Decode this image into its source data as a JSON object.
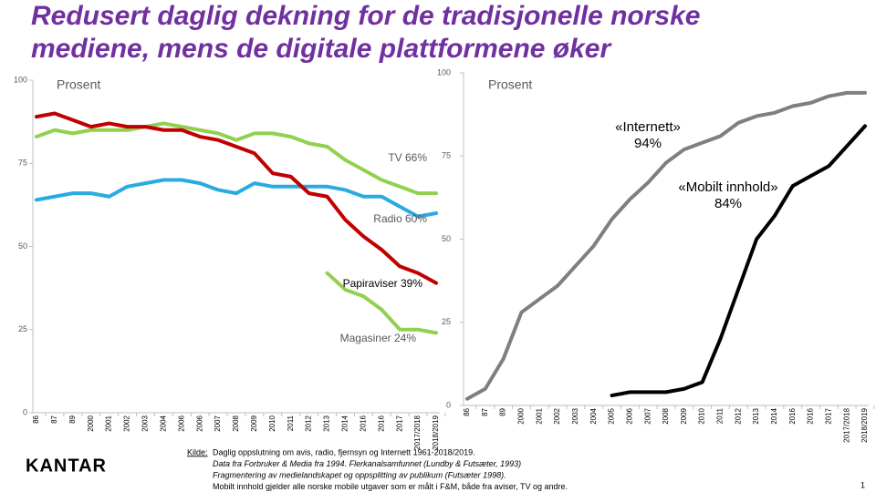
{
  "title": "Redusert daglig dekning for de tradisjonelle norske mediene, mens de digitale plattformene øker",
  "chart_data": [
    {
      "type": "line",
      "ylabel": "Prosent",
      "categories": [
        "86",
        "87",
        "89",
        "2000",
        "2001",
        "2002",
        "2003",
        "2004",
        "2006",
        "2006",
        "2007",
        "2008",
        "2009",
        "2010",
        "2011",
        "2012",
        "2013",
        "2014",
        "2016",
        "2016",
        "2017",
        "2017/2018",
        "2018/2019"
      ],
      "ylim": [
        0,
        100
      ],
      "yticks": [
        0,
        25,
        50,
        75,
        100
      ],
      "series": [
        {
          "color": "#92d050",
          "values": [
            83,
            85,
            84,
            85,
            85,
            85,
            86,
            87,
            86,
            85,
            84,
            82,
            84,
            84,
            83,
            81,
            80,
            76,
            73,
            70,
            68,
            66,
            66
          ]
        },
        {
          "color": "#29abe2",
          "values": [
            64,
            65,
            66,
            66,
            65,
            68,
            69,
            70,
            70,
            69,
            67,
            66,
            69,
            68,
            68,
            68,
            68,
            67,
            65,
            65,
            62,
            59,
            60
          ]
        },
        {
          "color": "#c00000",
          "values": [
            89,
            90,
            88,
            86,
            87,
            86,
            86,
            85,
            85,
            83,
            82,
            80,
            78,
            72,
            71,
            66,
            65,
            58,
            53,
            49,
            44,
            42,
            39
          ]
        },
        {
          "color": "#92d050",
          "values": [
            null,
            null,
            null,
            null,
            null,
            null,
            null,
            null,
            null,
            null,
            null,
            null,
            null,
            null,
            null,
            null,
            42,
            37,
            35,
            31,
            25,
            25,
            24
          ]
        }
      ],
      "annotations": [
        "TV 66%",
        "Radio 60%",
        "Papiraviser  39%",
        "Magasiner 24%"
      ]
    },
    {
      "type": "line",
      "ylabel": "Prosent",
      "categories": [
        "86",
        "87",
        "89",
        "2000",
        "2001",
        "2002",
        "2003",
        "2004",
        "2005",
        "2006",
        "2007",
        "2008",
        "2009",
        "2010",
        "2011",
        "2012",
        "2013",
        "2014",
        "2016",
        "2016",
        "2017",
        "2017/2018",
        "2018/2019"
      ],
      "ylim": [
        0,
        100
      ],
      "yticks": [
        0,
        25,
        50,
        75,
        100
      ],
      "series": [
        {
          "color": "#7f7f7f",
          "values": [
            2,
            5,
            14,
            28,
            32,
            36,
            42,
            48,
            56,
            62,
            67,
            73,
            77,
            79,
            81,
            85,
            87,
            88,
            90,
            91,
            93,
            94,
            94
          ]
        },
        {
          "color": "#000000",
          "values": [
            null,
            null,
            null,
            null,
            null,
            null,
            null,
            null,
            3,
            4,
            4,
            4,
            5,
            7,
            20,
            35,
            50,
            57,
            66,
            69,
            72,
            78,
            84
          ]
        }
      ],
      "annotations": [
        [
          "«Internett»",
          "94%"
        ],
        [
          "«Mobilt innhold»",
          "84%"
        ]
      ]
    }
  ],
  "footer": {
    "source_label": "Kilde:",
    "source_lines": [
      "Daglig oppslutning om avis, radio, fjernsyn  og Internett 1961-2018/2019.",
      "Data fra Forbruker & Media fra 1994. Flerkanalsamfunnet (Lundby & Futsæter, 1993)",
      "Fragmentering av medielandskapet og oppsplitting av publikum (Futsæter 1998).",
      "Mobilt innhold gjelder alle norske mobile utgaver som er målt i F&M, både fra aviser, TV og andre."
    ],
    "logo": "KANTAR",
    "page": "1"
  }
}
